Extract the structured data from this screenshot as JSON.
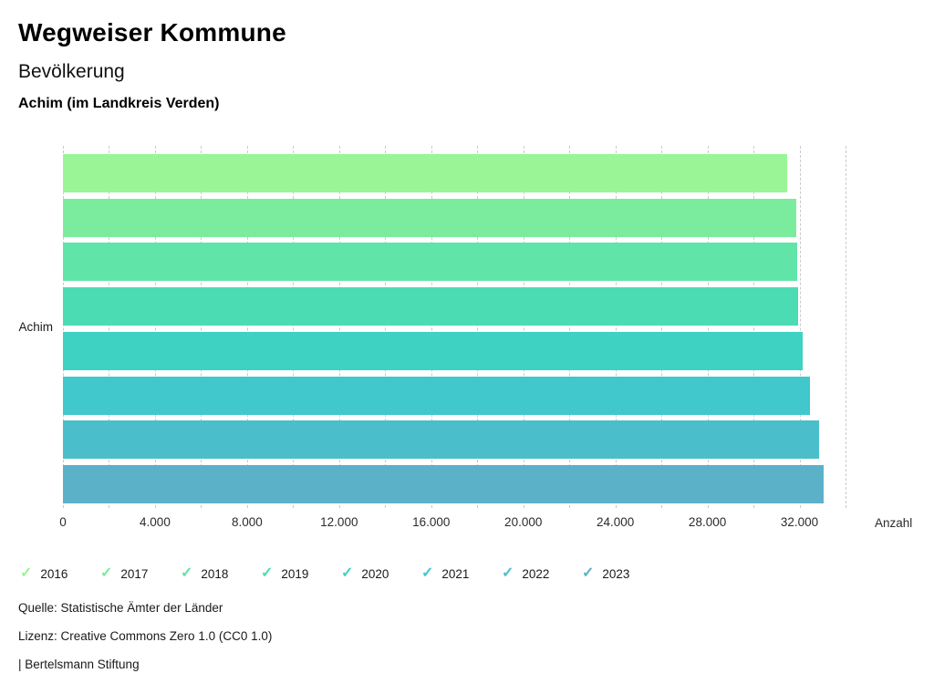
{
  "header": {
    "title": "Wegweiser Kommune",
    "subtitle": "Bevölkerung",
    "region": "Achim (im Landkreis Verden)"
  },
  "chart_data": {
    "type": "bar",
    "orientation": "horizontal",
    "category_label": "Achim",
    "x_axis_label": "Anzahl",
    "xlim": [
      0,
      34000
    ],
    "grid": "dashed vertical gridlines every 2.000",
    "legend_position": "bottom",
    "series": [
      {
        "year": "2016",
        "value": 31450,
        "color": "#99F595"
      },
      {
        "year": "2017",
        "value": 31850,
        "color": "#7BEC9D"
      },
      {
        "year": "2018",
        "value": 31900,
        "color": "#61E4A7"
      },
      {
        "year": "2019",
        "value": 31950,
        "color": "#4BDCB4"
      },
      {
        "year": "2020",
        "value": 32150,
        "color": "#3DD2C2"
      },
      {
        "year": "2021",
        "value": 32450,
        "color": "#40C8CC"
      },
      {
        "year": "2022",
        "value": 32850,
        "color": "#4BBECC"
      },
      {
        "year": "2023",
        "value": 33050,
        "color": "#5BB1C8"
      }
    ],
    "x_grid_values": [
      0,
      2000,
      4000,
      6000,
      8000,
      10000,
      12000,
      14000,
      16000,
      18000,
      20000,
      22000,
      24000,
      26000,
      28000,
      30000,
      32000,
      34000
    ],
    "x_ticks": [
      {
        "value": 0,
        "label": "0"
      },
      {
        "value": 4000,
        "label": "4.000"
      },
      {
        "value": 8000,
        "label": "8.000"
      },
      {
        "value": 12000,
        "label": "12.000"
      },
      {
        "value": 16000,
        "label": "16.000"
      },
      {
        "value": 20000,
        "label": "20.000"
      },
      {
        "value": 24000,
        "label": "24.000"
      },
      {
        "value": 28000,
        "label": "28.000"
      },
      {
        "value": 32000,
        "label": "32.000"
      }
    ]
  },
  "legend": {
    "check_glyph": "✓"
  },
  "footer": {
    "source": "Quelle: Statistische Ämter der Länder",
    "license": "Lizenz: Creative Commons Zero 1.0 (CC0 1.0)",
    "attribution": "| Bertelsmann Stiftung"
  }
}
